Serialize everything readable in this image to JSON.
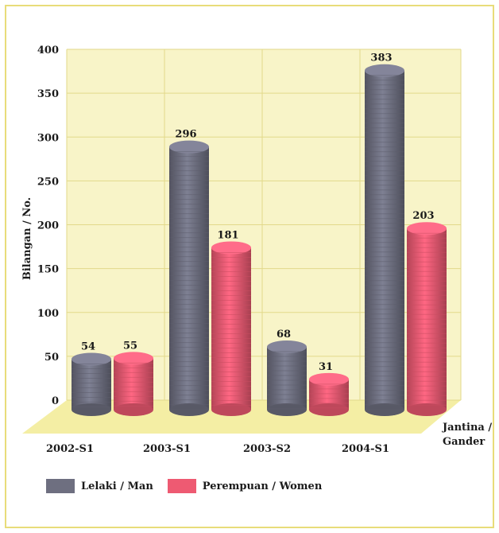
{
  "chart_data": {
    "type": "bar",
    "categories": [
      "2002-S1",
      "2003-S1",
      "2003-S2",
      "2004-S1"
    ],
    "series": [
      {
        "name": "Lelaki / Man",
        "values": [
          54,
          296,
          68,
          383
        ],
        "color": "#6e6f80"
      },
      {
        "name": "Perempuan / Women",
        "values": [
          55,
          181,
          31,
          203
        ],
        "color": "#ee5a72"
      }
    ],
    "ylabel": "Bilangan / No.",
    "xlabel": "Jantina / Gander",
    "yticks": [
      0,
      50,
      100,
      150,
      200,
      250,
      300,
      350,
      400
    ],
    "ylim": [
      0,
      400
    ],
    "grid": true,
    "legend": "bottom-left",
    "colors": {
      "floor": "#f4eea4",
      "wall": "#f8f4c8",
      "grid": "#e2d98a"
    }
  }
}
